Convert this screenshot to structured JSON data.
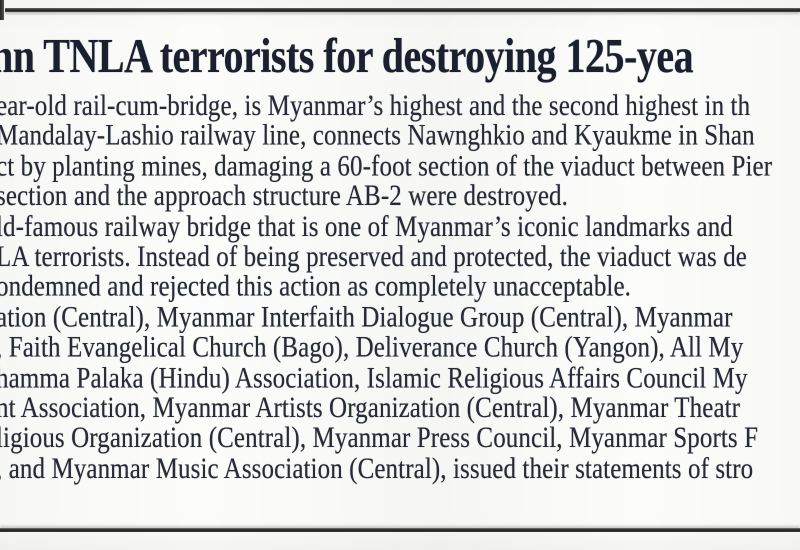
{
  "article": {
    "headline": "nn TNLA terrorists for destroying 125-yea",
    "body_lines": [
      "ear-old rail-cum-bridge, is Myanmar’s highest and the second highest in th",
      "Mandalay-Lashio railway line, connects Nawnghkio and Kyaukme in Shan",
      "ct by planting mines, damaging a 60-foot section of the viaduct between Pier",
      "section and the approach structure AB-2 were destroyed.",
      "ld-famous railway bridge that is one of Myanmar’s iconic landmarks and",
      "LA terrorists. Instead of being preserved and protected, the viaduct was de",
      "ondemned and rejected this action as completely unacceptable.",
      "ation (Central), Myanmar Interfaith Dialogue Group (Central), Myanmar",
      ", Faith Evangelical Church (Bago), Deliverance Church (Yangon), All My",
      "hamma Palaka (Hindu) Association, Islamic Religious Affairs Council My",
      "nt Association, Myanmar Artists Organization (Central), Myanmar Theatr",
      "ligious Organization (Central), Myanmar Press Council, Myanmar Sports F",
      ", and Myanmar Music Association (Central), issued their statements of stro"
    ]
  },
  "colors": {
    "ink": "#272b38",
    "headline_ink": "#1b2030",
    "rule": "#1e1e1e",
    "paper": "#fcfcfa"
  }
}
